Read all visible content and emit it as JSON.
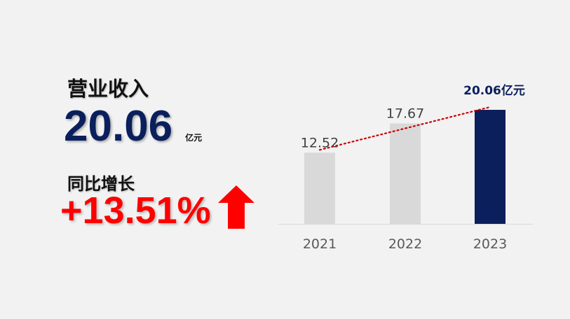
{
  "kpi": {
    "title": "营业收入",
    "value": "20.06",
    "unit": "亿元",
    "growth_label": "同比增长",
    "growth_value": "+13.51%",
    "growth_icon": "up-arrow-icon"
  },
  "colors": {
    "navy": "#0a1f5c",
    "grey_bar": "#d9d9d9",
    "red": "#ff0000",
    "trend": "#cc0000"
  },
  "chart_data": {
    "type": "bar",
    "categories": [
      "2021",
      "2022",
      "2023"
    ],
    "values": [
      12.52,
      17.67,
      20.06
    ],
    "data_labels": [
      "12.52",
      "17.67",
      "20.06亿元"
    ],
    "highlight": "2023",
    "trendline": "dotted",
    "ylim": [
      0,
      24
    ],
    "grid": false,
    "legend": "none",
    "title": "",
    "xlabel": "",
    "ylabel": ""
  }
}
